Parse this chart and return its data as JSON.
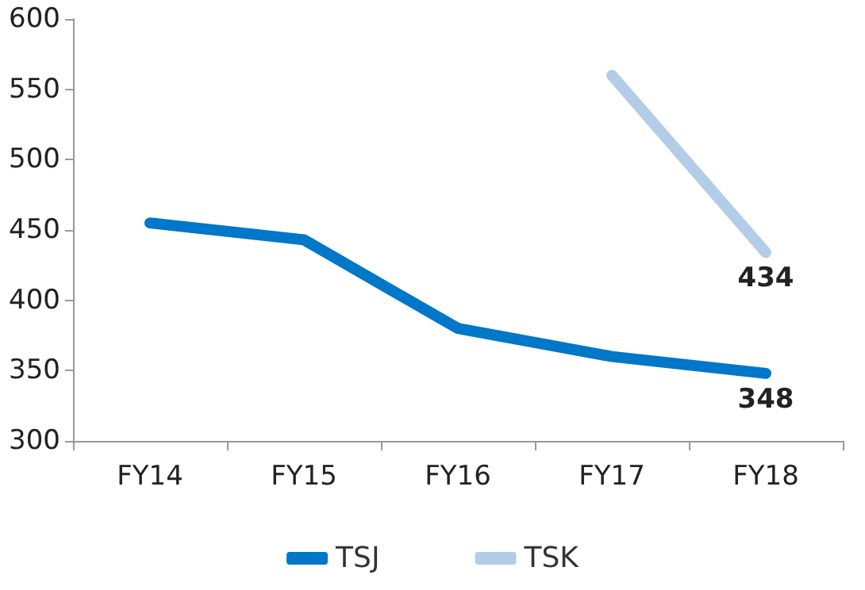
{
  "chart_data": {
    "type": "line",
    "categories": [
      "FY14",
      "FY15",
      "FY16",
      "FY17",
      "FY18"
    ],
    "series": [
      {
        "name": "TSJ",
        "color": "#0077c8",
        "values": [
          455,
          443,
          380,
          360,
          348
        ],
        "value_labels": [
          null,
          null,
          null,
          null,
          "348"
        ]
      },
      {
        "name": "TSK",
        "color": "#b3cde8",
        "values": [
          null,
          null,
          null,
          560,
          434
        ],
        "value_labels": [
          null,
          null,
          null,
          null,
          "434"
        ]
      }
    ],
    "ylim": [
      300,
      600
    ],
    "yticks": [
      300,
      350,
      400,
      450,
      500,
      550,
      600
    ],
    "grid": false,
    "legend": "bottom",
    "marker": "none",
    "line_style": "solid"
  }
}
